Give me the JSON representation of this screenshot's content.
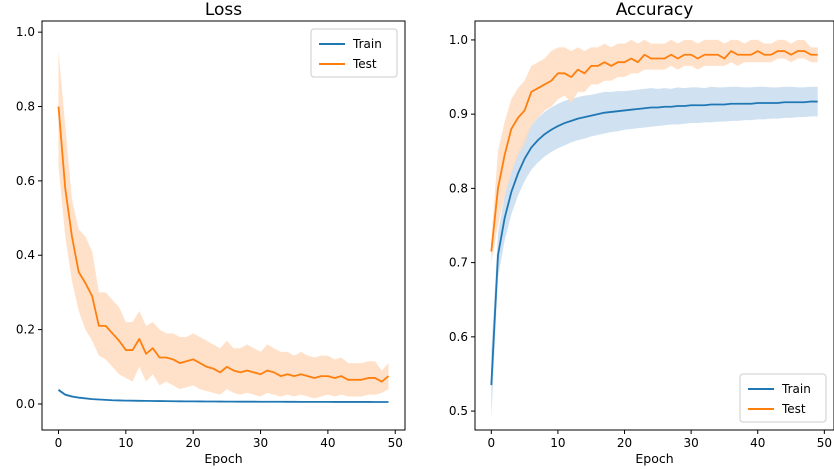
{
  "colors": {
    "train": "#1f77b4",
    "test": "#ff7f0e",
    "train_band": "#c8dcef",
    "test_band": "#ffdcbf"
  },
  "chart_data": [
    {
      "type": "line",
      "title": "Loss",
      "xlabel": "Epoch",
      "ylabel": "",
      "xlim": [
        -2.45,
        51.45
      ],
      "ylim": [
        -0.07,
        1.03
      ],
      "xticks": [
        0,
        10,
        20,
        30,
        40,
        50
      ],
      "yticks": [
        0.0,
        0.2,
        0.4,
        0.6,
        0.8,
        1.0
      ],
      "ytick_labels": [
        "0.0",
        "0.2",
        "0.4",
        "0.6",
        "0.8",
        "1.0"
      ],
      "legend_position": "top-right",
      "grid": false,
      "x": [
        0,
        1,
        2,
        3,
        4,
        5,
        6,
        7,
        8,
        9,
        10,
        11,
        12,
        13,
        14,
        15,
        16,
        17,
        18,
        19,
        20,
        21,
        22,
        23,
        24,
        25,
        26,
        27,
        28,
        29,
        30,
        31,
        32,
        33,
        34,
        35,
        36,
        37,
        38,
        39,
        40,
        41,
        42,
        43,
        44,
        45,
        46,
        47,
        48,
        49
      ],
      "series": [
        {
          "name": "Train",
          "color_key": "train",
          "values": [
            0.038,
            0.025,
            0.02,
            0.017,
            0.015,
            0.013,
            0.012,
            0.011,
            0.01,
            0.0095,
            0.009,
            0.0088,
            0.0085,
            0.0083,
            0.008,
            0.0078,
            0.0076,
            0.0074,
            0.0072,
            0.007,
            0.0069,
            0.0068,
            0.0067,
            0.0066,
            0.0065,
            0.0064,
            0.0063,
            0.0062,
            0.0062,
            0.0061,
            0.006,
            0.006,
            0.0059,
            0.0059,
            0.0058,
            0.0058,
            0.0057,
            0.0057,
            0.0056,
            0.0056,
            0.0056,
            0.0055,
            0.0055,
            0.0055,
            0.0054,
            0.0054,
            0.0054,
            0.0053,
            0.0053,
            0.0053
          ],
          "lower": [
            0.033,
            0.021,
            0.017,
            0.014,
            0.012,
            0.011,
            0.01,
            0.009,
            0.0085,
            0.008,
            0.0075,
            0.0073,
            0.007,
            0.0068,
            0.0066,
            0.0064,
            0.0062,
            0.006,
            0.0058,
            0.0057,
            0.0056,
            0.0055,
            0.0054,
            0.0053,
            0.0052,
            0.0051,
            0.0051,
            0.005,
            0.005,
            0.0049,
            0.0049,
            0.0048,
            0.0048,
            0.0047,
            0.0047,
            0.0047,
            0.0046,
            0.0046,
            0.0046,
            0.0045,
            0.0045,
            0.0045,
            0.0045,
            0.0044,
            0.0044,
            0.0044,
            0.0044,
            0.0043,
            0.0043,
            0.0043
          ],
          "upper": [
            0.043,
            0.029,
            0.023,
            0.02,
            0.018,
            0.015,
            0.014,
            0.013,
            0.0115,
            0.011,
            0.0105,
            0.0103,
            0.01,
            0.0098,
            0.0094,
            0.0092,
            0.009,
            0.0088,
            0.0086,
            0.0083,
            0.0082,
            0.0081,
            0.008,
            0.0079,
            0.0078,
            0.0077,
            0.0075,
            0.0074,
            0.0074,
            0.0073,
            0.0071,
            0.0072,
            0.007,
            0.0071,
            0.0069,
            0.0069,
            0.0068,
            0.0068,
            0.0066,
            0.0067,
            0.0067,
            0.0065,
            0.0065,
            0.0066,
            0.0064,
            0.0064,
            0.0064,
            0.0063,
            0.0063,
            0.0063
          ]
        },
        {
          "name": "Test",
          "color_key": "test",
          "values": [
            0.8,
            0.58,
            0.45,
            0.355,
            0.325,
            0.29,
            0.21,
            0.21,
            0.19,
            0.17,
            0.145,
            0.145,
            0.175,
            0.135,
            0.15,
            0.125,
            0.125,
            0.12,
            0.11,
            0.115,
            0.12,
            0.11,
            0.1,
            0.095,
            0.085,
            0.1,
            0.09,
            0.085,
            0.09,
            0.085,
            0.08,
            0.09,
            0.085,
            0.075,
            0.08,
            0.075,
            0.08,
            0.075,
            0.07,
            0.075,
            0.075,
            0.07,
            0.075,
            0.065,
            0.065,
            0.065,
            0.07,
            0.07,
            0.06,
            0.075
          ],
          "lower": [
            0.64,
            0.45,
            0.33,
            0.25,
            0.2,
            0.17,
            0.13,
            0.12,
            0.1,
            0.08,
            0.07,
            0.06,
            0.1,
            0.06,
            0.08,
            0.05,
            0.06,
            0.05,
            0.04,
            0.045,
            0.05,
            0.04,
            0.035,
            0.03,
            0.025,
            0.04,
            0.03,
            0.025,
            0.03,
            0.025,
            0.02,
            0.03,
            0.025,
            0.02,
            0.025,
            0.02,
            0.025,
            0.02,
            0.015,
            0.02,
            0.025,
            0.02,
            0.025,
            0.02,
            0.02,
            0.02,
            0.025,
            0.025,
            0.03,
            0.04
          ],
          "upper": [
            0.95,
            0.75,
            0.55,
            0.47,
            0.45,
            0.41,
            0.3,
            0.3,
            0.28,
            0.26,
            0.22,
            0.22,
            0.25,
            0.21,
            0.22,
            0.2,
            0.19,
            0.19,
            0.18,
            0.18,
            0.19,
            0.18,
            0.17,
            0.16,
            0.15,
            0.17,
            0.15,
            0.15,
            0.16,
            0.15,
            0.14,
            0.16,
            0.15,
            0.14,
            0.14,
            0.13,
            0.14,
            0.13,
            0.125,
            0.13,
            0.13,
            0.12,
            0.125,
            0.11,
            0.11,
            0.11,
            0.115,
            0.115,
            0.09,
            0.11
          ]
        }
      ]
    },
    {
      "type": "line",
      "title": "Accuracy",
      "xlabel": "Epoch",
      "ylabel": "",
      "xlim": [
        -2.45,
        51.45
      ],
      "ylim": [
        0.4745,
        1.0255
      ],
      "xticks": [
        0,
        10,
        20,
        30,
        40,
        50
      ],
      "yticks": [
        0.5,
        0.6,
        0.7,
        0.8,
        0.9,
        1.0
      ],
      "ytick_labels": [
        "0.5",
        "0.6",
        "0.7",
        "0.8",
        "0.9",
        "1.0"
      ],
      "legend_position": "bottom-right",
      "grid": false,
      "x": [
        0,
        1,
        2,
        3,
        4,
        5,
        6,
        7,
        8,
        9,
        10,
        11,
        12,
        13,
        14,
        15,
        16,
        17,
        18,
        19,
        20,
        21,
        22,
        23,
        24,
        25,
        26,
        27,
        28,
        29,
        30,
        31,
        32,
        33,
        34,
        35,
        36,
        37,
        38,
        39,
        40,
        41,
        42,
        43,
        44,
        45,
        46,
        47,
        48,
        49
      ],
      "series": [
        {
          "name": "Train",
          "color_key": "train",
          "values": [
            0.535,
            0.71,
            0.76,
            0.795,
            0.82,
            0.84,
            0.855,
            0.865,
            0.873,
            0.879,
            0.884,
            0.888,
            0.891,
            0.894,
            0.896,
            0.898,
            0.9,
            0.902,
            0.903,
            0.904,
            0.905,
            0.906,
            0.907,
            0.908,
            0.909,
            0.909,
            0.91,
            0.91,
            0.911,
            0.911,
            0.912,
            0.912,
            0.912,
            0.913,
            0.913,
            0.913,
            0.914,
            0.914,
            0.914,
            0.914,
            0.915,
            0.915,
            0.915,
            0.915,
            0.916,
            0.916,
            0.916,
            0.916,
            0.917,
            0.917
          ],
          "lower": [
            0.49,
            0.68,
            0.73,
            0.765,
            0.79,
            0.81,
            0.825,
            0.835,
            0.843,
            0.849,
            0.854,
            0.858,
            0.862,
            0.865,
            0.867,
            0.87,
            0.872,
            0.874,
            0.876,
            0.877,
            0.879,
            0.88,
            0.881,
            0.882,
            0.883,
            0.884,
            0.885,
            0.886,
            0.886,
            0.887,
            0.888,
            0.888,
            0.889,
            0.889,
            0.89,
            0.89,
            0.891,
            0.891,
            0.892,
            0.892,
            0.893,
            0.893,
            0.894,
            0.894,
            0.895,
            0.895,
            0.896,
            0.896,
            0.897,
            0.897
          ],
          "upper": [
            0.58,
            0.74,
            0.79,
            0.825,
            0.85,
            0.87,
            0.885,
            0.895,
            0.903,
            0.909,
            0.914,
            0.918,
            0.92,
            0.923,
            0.925,
            0.926,
            0.928,
            0.93,
            0.93,
            0.931,
            0.931,
            0.932,
            0.933,
            0.934,
            0.935,
            0.934,
            0.935,
            0.934,
            0.936,
            0.935,
            0.936,
            0.936,
            0.935,
            0.937,
            0.936,
            0.936,
            0.937,
            0.937,
            0.936,
            0.936,
            0.937,
            0.937,
            0.936,
            0.936,
            0.937,
            0.937,
            0.936,
            0.936,
            0.937,
            0.937
          ]
        },
        {
          "name": "Test",
          "color_key": "test",
          "values": [
            0.715,
            0.8,
            0.845,
            0.88,
            0.895,
            0.905,
            0.93,
            0.935,
            0.94,
            0.945,
            0.955,
            0.955,
            0.95,
            0.96,
            0.955,
            0.965,
            0.965,
            0.97,
            0.965,
            0.97,
            0.97,
            0.975,
            0.97,
            0.98,
            0.975,
            0.975,
            0.975,
            0.98,
            0.975,
            0.98,
            0.98,
            0.975,
            0.98,
            0.98,
            0.98,
            0.975,
            0.985,
            0.98,
            0.98,
            0.98,
            0.985,
            0.98,
            0.98,
            0.985,
            0.985,
            0.98,
            0.985,
            0.985,
            0.98,
            0.98
          ],
          "lower": [
            0.7,
            0.75,
            0.79,
            0.82,
            0.845,
            0.86,
            0.885,
            0.895,
            0.905,
            0.91,
            0.92,
            0.925,
            0.915,
            0.93,
            0.93,
            0.94,
            0.94,
            0.945,
            0.945,
            0.95,
            0.95,
            0.955,
            0.955,
            0.96,
            0.96,
            0.96,
            0.96,
            0.965,
            0.96,
            0.965,
            0.965,
            0.96,
            0.965,
            0.965,
            0.965,
            0.965,
            0.97,
            0.965,
            0.97,
            0.97,
            0.97,
            0.97,
            0.97,
            0.975,
            0.975,
            0.97,
            0.975,
            0.975,
            0.97,
            0.97
          ],
          "upper": [
            0.73,
            0.85,
            0.89,
            0.92,
            0.935,
            0.945,
            0.965,
            0.97,
            0.975,
            0.985,
            0.99,
            0.99,
            0.985,
            0.99,
            0.985,
            0.99,
            0.99,
            0.995,
            0.99,
            0.995,
            0.995,
            1.0,
            0.995,
            1.0,
            0.995,
            0.995,
            0.995,
            1.0,
            0.995,
            1.0,
            1.0,
            0.995,
            1.0,
            1.0,
            1.0,
            0.995,
            1.0,
            1.0,
            0.995,
            1.0,
            1.0,
            0.995,
            0.995,
            1.0,
            1.0,
            0.995,
            1.0,
            1.0,
            0.99,
            0.99
          ]
        }
      ]
    }
  ]
}
